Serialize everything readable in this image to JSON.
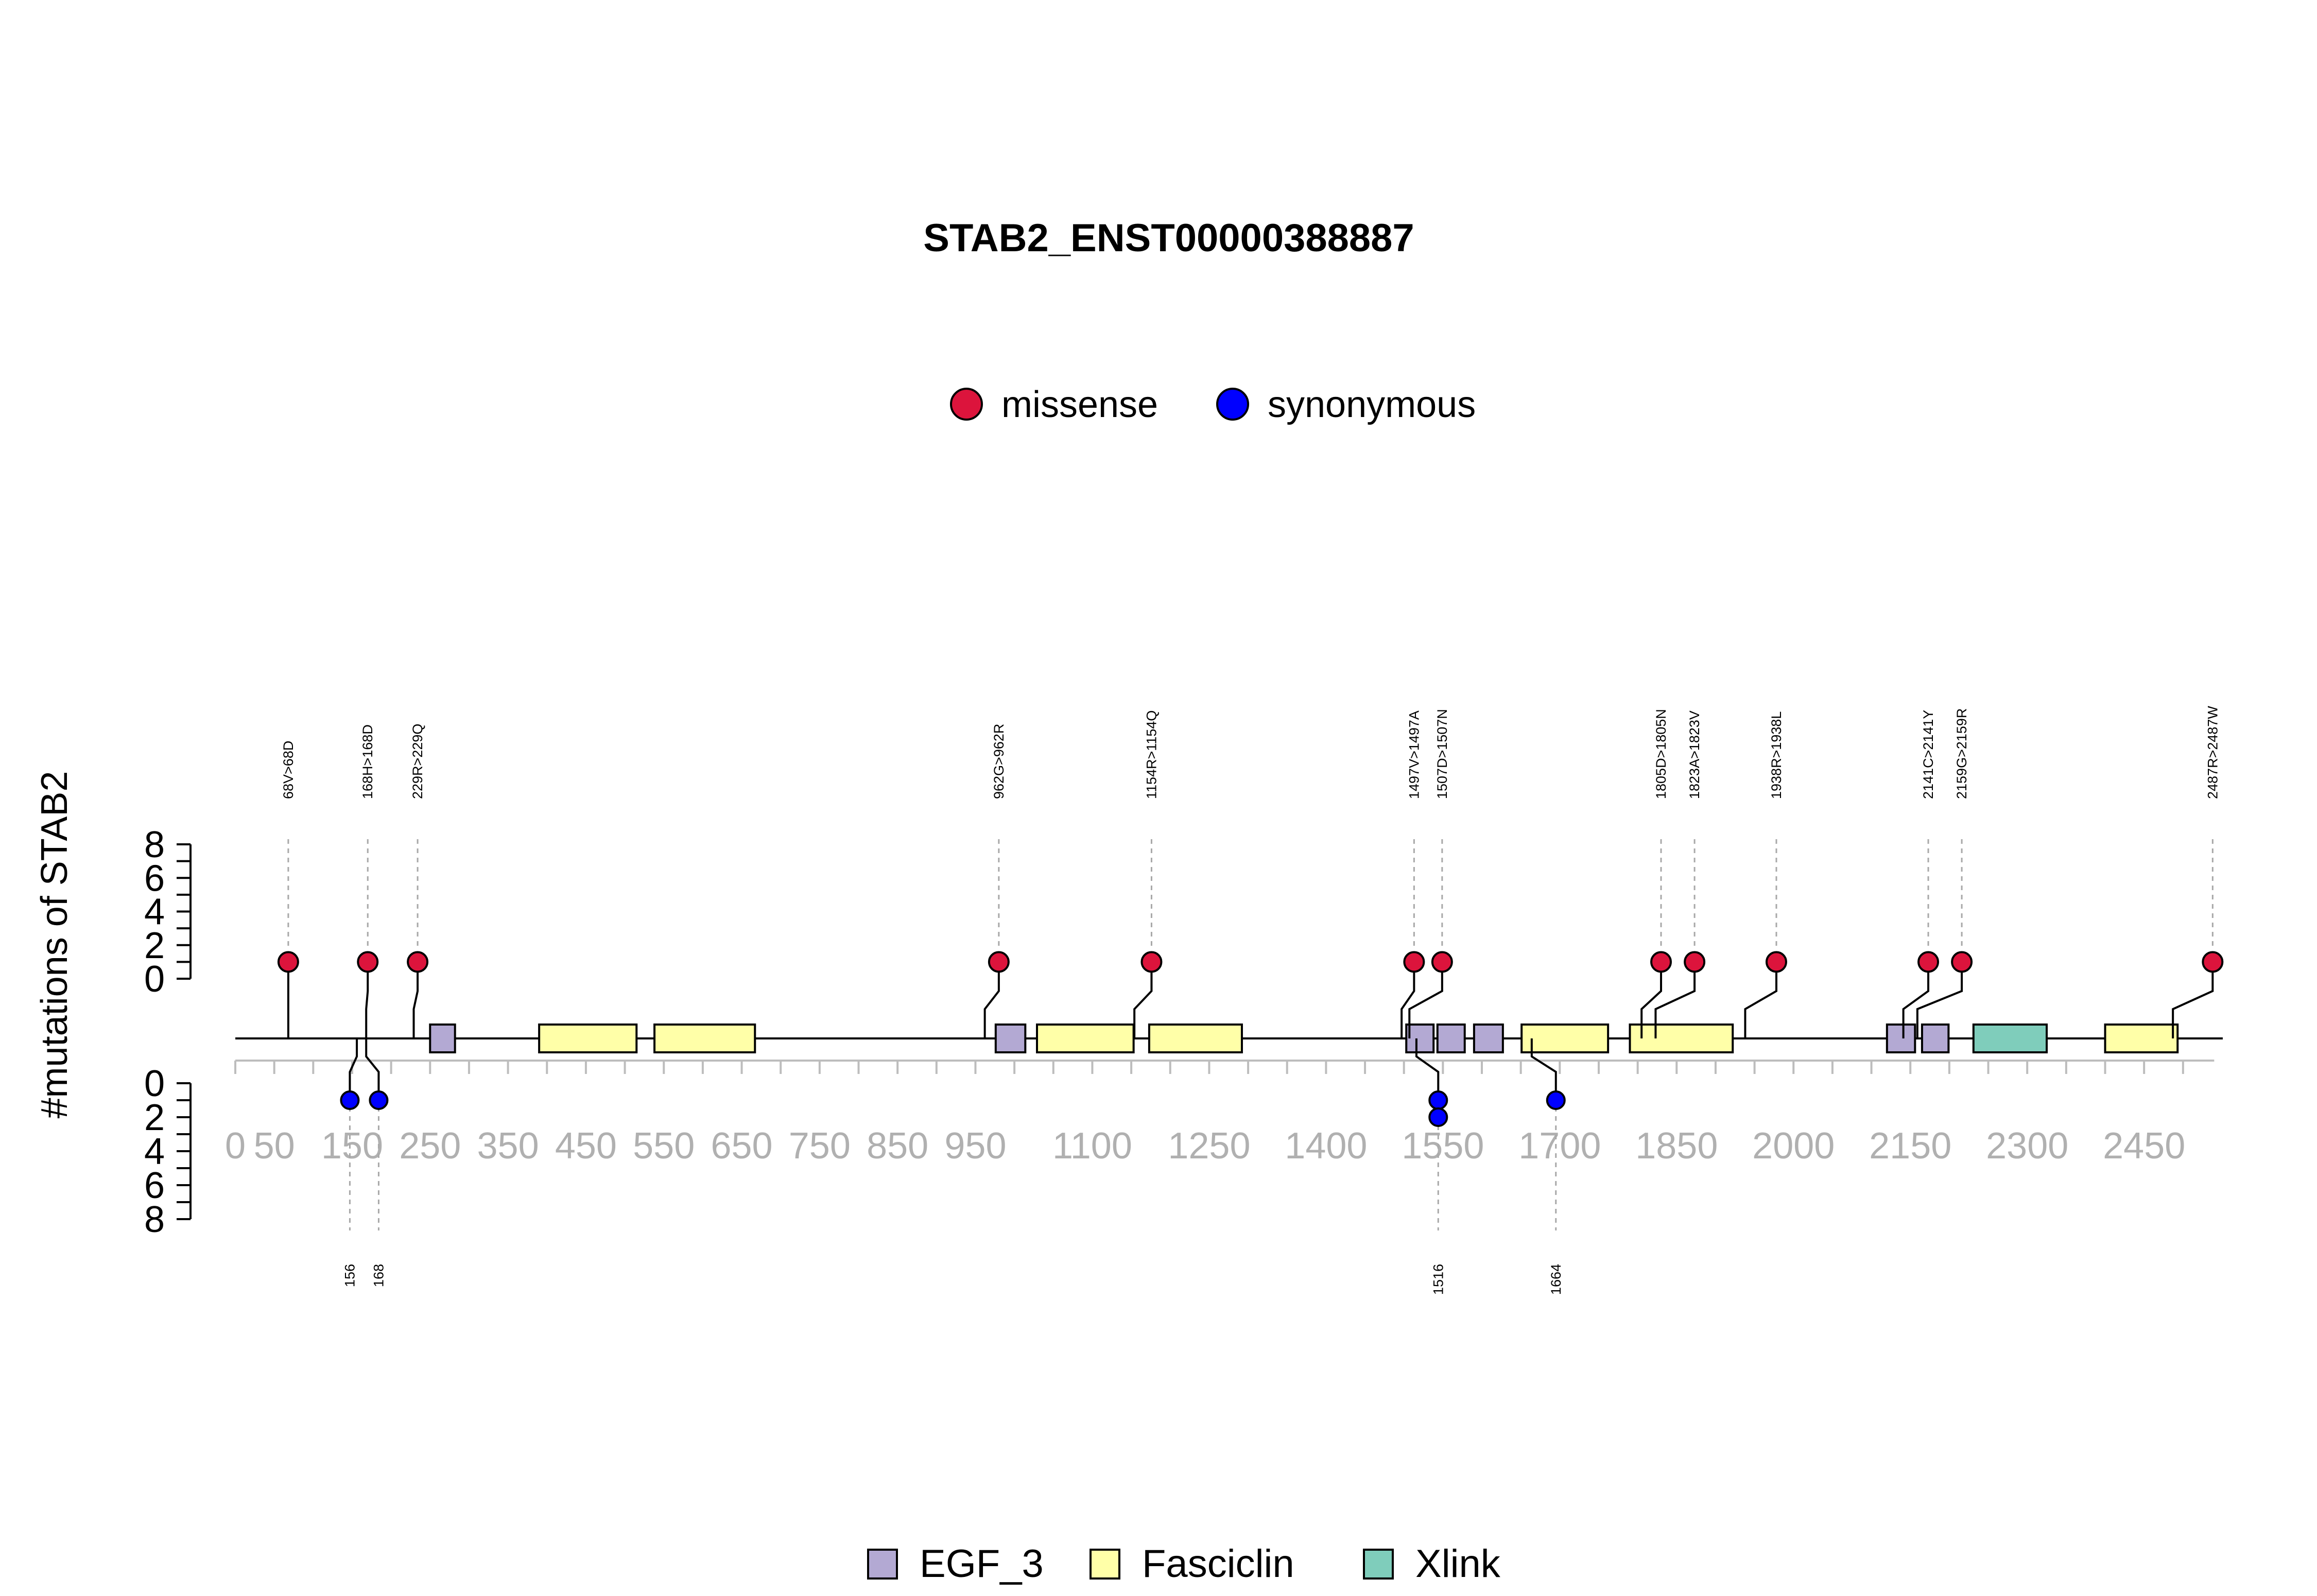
{
  "chart_data": {
    "type": "lollipop",
    "title": "STAB2_ENST00000388887",
    "ylabel": "#mutations of STAB2",
    "xlim": [
      0,
      2551
    ],
    "ylim": [
      0,
      8
    ],
    "grid": false,
    "legend_position": "top-center",
    "y_ticks_top": [
      "8",
      "6",
      "4",
      "2",
      "0"
    ],
    "y_ticks_bottom": [
      "0",
      "2",
      "4",
      "6",
      "8"
    ],
    "x_ticks": [
      {
        "value": 0,
        "label": "0"
      },
      {
        "value": 50,
        "label": "50"
      },
      {
        "value": 150,
        "label": "150"
      },
      {
        "value": 250,
        "label": "250"
      },
      {
        "value": 350,
        "label": "350"
      },
      {
        "value": 450,
        "label": "450"
      },
      {
        "value": 550,
        "label": "550"
      },
      {
        "value": 650,
        "label": "650"
      },
      {
        "value": 750,
        "label": "750"
      },
      {
        "value": 850,
        "label": "850"
      },
      {
        "value": 950,
        "label": "950"
      },
      {
        "value": 1100,
        "label": "1100"
      },
      {
        "value": 1250,
        "label": "1250"
      },
      {
        "value": 1400,
        "label": "1400"
      },
      {
        "value": 1550,
        "label": "1550"
      },
      {
        "value": 1700,
        "label": "1700"
      },
      {
        "value": 1850,
        "label": "1850"
      },
      {
        "value": 2000,
        "label": "2000"
      },
      {
        "value": 2150,
        "label": "2150"
      },
      {
        "value": 2300,
        "label": "2300"
      },
      {
        "value": 2450,
        "label": "2450"
      }
    ],
    "mutation_legend": [
      {
        "name": "missense",
        "color": "#dc143c"
      },
      {
        "name": "synonymous",
        "color": "#0000ff"
      }
    ],
    "domain_legend": [
      {
        "name": "EGF_3",
        "color": "#b3a9d3"
      },
      {
        "name": "Fasciclin",
        "color": "#ffffa8"
      },
      {
        "name": "Xlink",
        "color": "#7fcdbb"
      }
    ],
    "domains": [
      {
        "name": "EGF_3",
        "start": 250,
        "end": 282
      },
      {
        "name": "Fasciclin",
        "start": 390,
        "end": 515
      },
      {
        "name": "Fasciclin",
        "start": 538,
        "end": 667
      },
      {
        "name": "EGF_3",
        "start": 976,
        "end": 1014
      },
      {
        "name": "Fasciclin",
        "start": 1029,
        "end": 1153
      },
      {
        "name": "Fasciclin",
        "start": 1173,
        "end": 1292
      },
      {
        "name": "EGF_3",
        "start": 1503,
        "end": 1538
      },
      {
        "name": "EGF_3",
        "start": 1543,
        "end": 1578
      },
      {
        "name": "EGF_3",
        "start": 1590,
        "end": 1627
      },
      {
        "name": "Fasciclin",
        "start": 1651,
        "end": 1762
      },
      {
        "name": "Fasciclin",
        "start": 1790,
        "end": 1922
      },
      {
        "name": "EGF_3",
        "start": 2120,
        "end": 2156
      },
      {
        "name": "EGF_3",
        "start": 2165,
        "end": 2199
      },
      {
        "name": "Xlink",
        "start": 2231,
        "end": 2325
      },
      {
        "name": "Fasciclin",
        "start": 2400,
        "end": 2493
      }
    ],
    "mutations_top": [
      {
        "position": 68,
        "label": "68V>68D",
        "count": 1,
        "type": "missense",
        "label_position": 68
      },
      {
        "position": 168,
        "label": "168H>168D",
        "count": 1,
        "type": "missense",
        "label_position": 170
      },
      {
        "position": 229,
        "label": "229R>229Q",
        "count": 1,
        "type": "missense",
        "label_position": 234
      },
      {
        "position": 962,
        "label": "962G>962R",
        "count": 1,
        "type": "missense",
        "label_position": 980
      },
      {
        "position": 1154,
        "label": "1154R>1154Q",
        "count": 1,
        "type": "missense",
        "label_position": 1176
      },
      {
        "position": 1497,
        "label": "1497V>1497A",
        "count": 1,
        "type": "missense",
        "label_position": 1513
      },
      {
        "position": 1507,
        "label": "1507D>1507N",
        "count": 1,
        "type": "missense",
        "label_position": 1549
      },
      {
        "position": 1805,
        "label": "1805D>1805N",
        "count": 1,
        "type": "missense",
        "label_position": 1830
      },
      {
        "position": 1823,
        "label": "1823A>1823V",
        "count": 1,
        "type": "missense",
        "label_position": 1873
      },
      {
        "position": 1938,
        "label": "1938R>1938L",
        "count": 1,
        "type": "missense",
        "label_position": 1978
      },
      {
        "position": 2141,
        "label": "2141C>2141Y",
        "count": 1,
        "type": "missense",
        "label_position": 2173
      },
      {
        "position": 2159,
        "label": "2159G>2159R",
        "count": 1,
        "type": "missense",
        "label_position": 2216
      },
      {
        "position": 2487,
        "label": "2487R>2487W",
        "count": 1,
        "type": "missense",
        "label_position": 2538
      }
    ],
    "mutations_bottom": [
      {
        "position": 156,
        "label": "156",
        "count": 1,
        "type": "synonymous",
        "label_position": 147
      },
      {
        "position": 168,
        "label": "168",
        "count": 1,
        "type": "synonymous",
        "label_position": 184
      },
      {
        "position": 1516,
        "label": "1516",
        "count": 2,
        "type": "synonymous",
        "label_position": 1544
      },
      {
        "position": 1664,
        "label": "1664",
        "count": 1,
        "type": "synonymous",
        "label_position": 1695
      }
    ]
  }
}
